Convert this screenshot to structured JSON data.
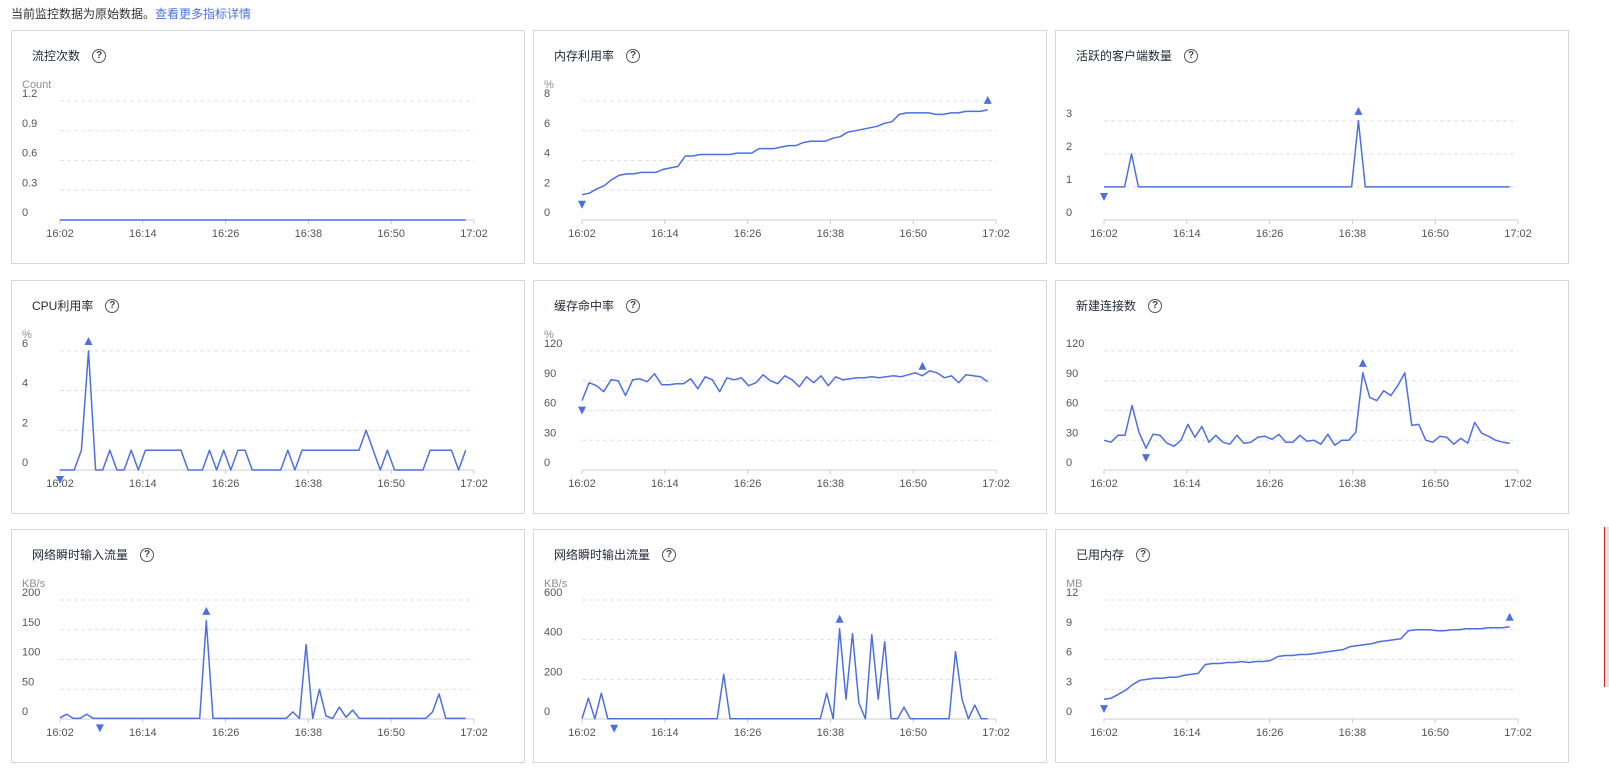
{
  "header": {
    "note": "当前监控数据为原始数据。",
    "link": "查看更多指标详情"
  },
  "colors": {
    "series": "#4e6fdf",
    "grid": "#dfe1e6",
    "link": "#4a74d8"
  },
  "icons": {
    "help": "question-circle-icon",
    "max_marker": "triangle-up",
    "min_marker": "triangle-down"
  },
  "charts": [
    {
      "title": "流控次数",
      "unit": "Count",
      "yticks": [
        "1.2",
        "0.9",
        "0.6",
        "0.3",
        "0"
      ],
      "ymax": 1.2,
      "xticks": [
        "16:02",
        "16:14",
        "16:26",
        "16:38",
        "16:50",
        "17:02"
      ],
      "chart_data": {
        "type": "line",
        "values": [
          0,
          0,
          0,
          0,
          0,
          0,
          0,
          0,
          0,
          0,
          0,
          0,
          0,
          0,
          0,
          0,
          0,
          0,
          0,
          0,
          0,
          0,
          0,
          0,
          0,
          0,
          0,
          0,
          0,
          0,
          0,
          0,
          0,
          0,
          0,
          0,
          0,
          0,
          0,
          0,
          0,
          0,
          0,
          0,
          0,
          0,
          0,
          0,
          0,
          0,
          0,
          0,
          0,
          0,
          0,
          0,
          0,
          0,
          0
        ],
        "max_index": null,
        "min_index": null
      }
    },
    {
      "title": "内存利用率",
      "unit": "%",
      "yticks": [
        "8",
        "6",
        "4",
        "2",
        "0"
      ],
      "ymax": 8,
      "xticks": [
        "16:02",
        "16:14",
        "16:26",
        "16:38",
        "16:50",
        "17:02"
      ],
      "chart_data": {
        "type": "line",
        "values": [
          1.7,
          1.8,
          2.1,
          2.3,
          2.7,
          3.0,
          3.1,
          3.1,
          3.2,
          3.2,
          3.2,
          3.4,
          3.5,
          3.6,
          4.3,
          4.3,
          4.4,
          4.4,
          4.4,
          4.4,
          4.4,
          4.5,
          4.5,
          4.5,
          4.8,
          4.8,
          4.8,
          4.9,
          5.0,
          5.0,
          5.2,
          5.3,
          5.3,
          5.3,
          5.5,
          5.6,
          5.9,
          6.0,
          6.1,
          6.2,
          6.3,
          6.5,
          6.6,
          7.1,
          7.2,
          7.2,
          7.2,
          7.2,
          7.1,
          7.1,
          7.2,
          7.2,
          7.3,
          7.3,
          7.3,
          7.4
        ],
        "max_index": 55,
        "min_index": 0
      }
    },
    {
      "title": "活跃的客户端数量",
      "unit": "",
      "yticks": [
        "3",
        "2",
        "1",
        "0"
      ],
      "ymax": 3.6,
      "xticks": [
        "16:02",
        "16:14",
        "16:26",
        "16:38",
        "16:50",
        "17:02"
      ],
      "chart_data": {
        "type": "line",
        "values": [
          1,
          1,
          1,
          1,
          2,
          1,
          1,
          1,
          1,
          1,
          1,
          1,
          1,
          1,
          1,
          1,
          1,
          1,
          1,
          1,
          1,
          1,
          1,
          1,
          1,
          1,
          1,
          1,
          1,
          1,
          1,
          1,
          1,
          1,
          1,
          1,
          1,
          3,
          1,
          1,
          1,
          1,
          1,
          1,
          1,
          1,
          1,
          1,
          1,
          1,
          1,
          1,
          1,
          1,
          1,
          1,
          1,
          1,
          1,
          1
        ],
        "max_index": 37,
        "min_index": 0
      }
    },
    {
      "title": "CPU利用率",
      "unit": "%",
      "yticks": [
        "6",
        "4",
        "2",
        "0"
      ],
      "ymax": 6,
      "xticks": [
        "16:02",
        "16:14",
        "16:26",
        "16:38",
        "16:50",
        "17:02"
      ],
      "chart_data": {
        "type": "line",
        "values": [
          0,
          0,
          0,
          1,
          6,
          0,
          0,
          1,
          0,
          0,
          1,
          0,
          1,
          1,
          1,
          1,
          1,
          1,
          0,
          0,
          0,
          1,
          0,
          1,
          0,
          1,
          1,
          0,
          0,
          0,
          0,
          0,
          1,
          0,
          1,
          1,
          1,
          1,
          1,
          1,
          1,
          1,
          1,
          2,
          1,
          0,
          1,
          0,
          0,
          0,
          0,
          0,
          1,
          1,
          1,
          1,
          0,
          1
        ],
        "max_index": 4,
        "min_index": 0
      }
    },
    {
      "title": "缓存命中率",
      "unit": "%",
      "yticks": [
        "120",
        "90",
        "60",
        "30",
        "0"
      ],
      "ymax": 120,
      "xticks": [
        "16:02",
        "16:14",
        "16:26",
        "16:38",
        "16:50",
        "17:02"
      ],
      "chart_data": {
        "type": "line",
        "values": [
          70,
          88,
          85,
          79,
          91,
          90,
          75,
          91,
          92,
          89,
          97,
          86,
          86,
          87,
          87,
          92,
          82,
          94,
          91,
          79,
          93,
          91,
          93,
          85,
          88,
          96,
          90,
          87,
          95,
          91,
          84,
          94,
          88,
          95,
          85,
          94,
          91,
          92,
          93,
          93,
          94,
          93,
          94,
          95,
          94,
          96,
          98,
          95,
          100,
          98,
          93,
          95,
          88,
          96,
          95,
          94,
          89
        ],
        "max_index": 47,
        "min_index": 0
      }
    },
    {
      "title": "新建连接数",
      "unit": "",
      "yticks": [
        "120",
        "90",
        "60",
        "30",
        "0"
      ],
      "ymax": 120,
      "xticks": [
        "16:02",
        "16:14",
        "16:26",
        "16:38",
        "16:50",
        "17:02"
      ],
      "chart_data": {
        "type": "line",
        "values": [
          30,
          28,
          35,
          35,
          65,
          38,
          22,
          36,
          35,
          27,
          24,
          30,
          46,
          33,
          44,
          28,
          35,
          28,
          26,
          35,
          27,
          28,
          33,
          34,
          31,
          36,
          28,
          28,
          35,
          29,
          30,
          26,
          36,
          25,
          30,
          30,
          38,
          98,
          73,
          70,
          80,
          75,
          85,
          98,
          45,
          46,
          30,
          28,
          34,
          33,
          26,
          32,
          27,
          48,
          37,
          34,
          30,
          28,
          27
        ],
        "max_index": 37,
        "min_index": 6
      }
    },
    {
      "title": "网络瞬时输入流量",
      "unit": "KB/s",
      "yticks": [
        "200",
        "150",
        "100",
        "50",
        "0"
      ],
      "ymax": 200,
      "xticks": [
        "16:02",
        "16:14",
        "16:26",
        "16:38",
        "16:50",
        "17:02"
      ],
      "chart_data": {
        "type": "line",
        "values": [
          2,
          8,
          1,
          1,
          8,
          1,
          1,
          1,
          1,
          1,
          1,
          1,
          1,
          1,
          1,
          1,
          1,
          1,
          1,
          1,
          1,
          1,
          165,
          1,
          1,
          1,
          1,
          1,
          1,
          1,
          1,
          1,
          1,
          1,
          1,
          12,
          1,
          125,
          1,
          50,
          5,
          1,
          20,
          3,
          15,
          1,
          1,
          1,
          1,
          1,
          1,
          1,
          1,
          1,
          1,
          1,
          12,
          42,
          1,
          1,
          1,
          1
        ],
        "max_index": 22,
        "min_index": 6
      }
    },
    {
      "title": "网络瞬时输出流量",
      "unit": "KB/s",
      "yticks": [
        "600",
        "400",
        "200",
        "0"
      ],
      "ymax": 600,
      "xticks": [
        "16:02",
        "16:14",
        "16:26",
        "16:38",
        "16:50",
        "17:02"
      ],
      "chart_data": {
        "type": "line",
        "values": [
          2,
          105,
          1,
          130,
          1,
          1,
          1,
          1,
          1,
          1,
          1,
          1,
          1,
          1,
          1,
          1,
          1,
          1,
          1,
          1,
          1,
          1,
          225,
          1,
          1,
          1,
          1,
          1,
          1,
          1,
          1,
          1,
          1,
          1,
          1,
          1,
          1,
          1,
          130,
          1,
          455,
          100,
          430,
          80,
          1,
          425,
          100,
          390,
          1,
          1,
          60,
          1,
          1,
          1,
          1,
          1,
          1,
          1,
          340,
          100,
          1,
          70,
          1,
          1
        ],
        "max_index": 40,
        "min_index": 5
      }
    },
    {
      "title": "已用内存",
      "unit": "MB",
      "yticks": [
        "12",
        "9",
        "6",
        "3",
        "0"
      ],
      "ymax": 12,
      "xticks": [
        "16:02",
        "16:14",
        "16:26",
        "16:38",
        "16:50",
        "17:02"
      ],
      "chart_data": {
        "type": "line",
        "values": [
          2.0,
          2.1,
          2.5,
          2.9,
          3.5,
          3.9,
          4.0,
          4.1,
          4.1,
          4.2,
          4.2,
          4.4,
          4.5,
          4.6,
          5.5,
          5.6,
          5.6,
          5.7,
          5.7,
          5.8,
          5.7,
          5.8,
          5.8,
          5.9,
          6.3,
          6.4,
          6.4,
          6.5,
          6.5,
          6.6,
          6.7,
          6.8,
          6.9,
          7.0,
          7.3,
          7.4,
          7.5,
          7.6,
          7.8,
          7.9,
          8.0,
          8.1,
          8.9,
          9.0,
          9.0,
          9.0,
          8.9,
          8.9,
          9.0,
          9.0,
          9.1,
          9.1,
          9.1,
          9.2,
          9.2,
          9.2,
          9.3
        ],
        "max_index": 56,
        "min_index": 0
      }
    }
  ]
}
